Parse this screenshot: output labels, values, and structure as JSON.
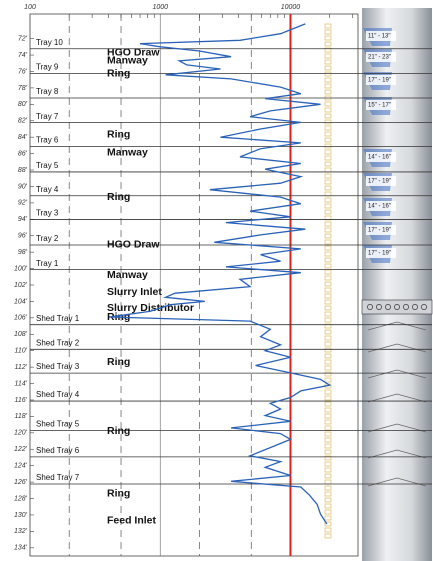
{
  "chart_data": {
    "type": "line",
    "x_log": true,
    "xlim": [
      100,
      33000
    ],
    "xticks": [
      100,
      1000,
      10000
    ],
    "x_minor_ticks": [
      200,
      500,
      2000,
      5000
    ],
    "ref_x": 10000,
    "ref_color": "#e0201a",
    "ylim": [
      69,
      135
    ],
    "yticks": [
      {
        "value": 72,
        "label": "72'"
      },
      {
        "value": 74,
        "label": "74'"
      },
      {
        "value": 76,
        "label": "76'"
      },
      {
        "value": 78,
        "label": "78'"
      },
      {
        "value": 80,
        "label": "80'"
      },
      {
        "value": 82,
        "label": "82'"
      },
      {
        "value": 84,
        "label": "84'"
      },
      {
        "value": 86,
        "label": "86'"
      },
      {
        "value": 88,
        "label": "88'"
      },
      {
        "value": 90,
        "label": "90'"
      },
      {
        "value": 92,
        "label": "92'"
      },
      {
        "value": 94,
        "label": "94'"
      },
      {
        "value": 96,
        "label": "96'"
      },
      {
        "value": 98,
        "label": "98'"
      },
      {
        "value": 100,
        "label": "100'"
      },
      {
        "value": 102,
        "label": "102'"
      },
      {
        "value": 104,
        "label": "104'"
      },
      {
        "value": 106,
        "label": "106'"
      },
      {
        "value": 108,
        "label": "108'"
      },
      {
        "value": 110,
        "label": "110'"
      },
      {
        "value": 112,
        "label": "112'"
      },
      {
        "value": 114,
        "label": "114'"
      },
      {
        "value": 116,
        "label": "116'"
      },
      {
        "value": 118,
        "label": "118'"
      },
      {
        "value": 120,
        "label": "120'"
      },
      {
        "value": 122,
        "label": "122'"
      },
      {
        "value": 124,
        "label": "124'"
      },
      {
        "value": 126,
        "label": "126'"
      },
      {
        "value": 128,
        "label": "128'"
      },
      {
        "value": 130,
        "label": "130'"
      },
      {
        "value": 132,
        "label": "132'"
      },
      {
        "value": 134,
        "label": "134'"
      }
    ],
    "series": [
      {
        "color": "#2a62b8",
        "depth": [
          70.2,
          71.4,
          72.2,
          72.6,
          73.0,
          73.5,
          74.2,
          74.7,
          75.2,
          75.7,
          76.4,
          76.9,
          77.9,
          78.7,
          79.3,
          80.0,
          80.8,
          81.5,
          82.2,
          83.0,
          84.0,
          84.7,
          85.4,
          86.4,
          87.2,
          87.9,
          88.8,
          89.6,
          90.4,
          91.3,
          92.1,
          93.0,
          93.7,
          94.4,
          95.2,
          95.9,
          96.8,
          97.6,
          98.3,
          99.1,
          99.8,
          100.5,
          101.3,
          102.2,
          103.0,
          103.5,
          104.0,
          104.4,
          105.2,
          105.9,
          106.4,
          107.4,
          108.3,
          109.3,
          110.0,
          110.8,
          111.8,
          112.7,
          113.5,
          114.2,
          114.9,
          115.7,
          116.4,
          117.1,
          117.9,
          118.6,
          119.4,
          120.1,
          120.8,
          121.8,
          122.8,
          123.5,
          124.2,
          125.2,
          125.9,
          126.6,
          127.6,
          128.7,
          129.9,
          131.1
        ],
        "values": [
          13000,
          8400,
          4100,
          700,
          1000,
          2000,
          3500,
          1400,
          1600,
          2900,
          1100,
          3500,
          8400,
          12000,
          6400,
          17000,
          7000,
          4900,
          12000,
          5900,
          2900,
          12000,
          5900,
          4100,
          12000,
          6400,
          12000,
          8400,
          2400,
          8400,
          12000,
          4900,
          10000,
          3200,
          13000,
          5900,
          2600,
          12000,
          5900,
          8400,
          3200,
          12000,
          4100,
          4900,
          1300,
          1100,
          2200,
          1200,
          840,
          410,
          4900,
          7000,
          5900,
          8400,
          6400,
          10000,
          5400,
          10000,
          17000,
          20000,
          12000,
          10000,
          7000,
          8400,
          6400,
          10000,
          3500,
          8400,
          10000,
          7000,
          4900,
          8400,
          6400,
          10000,
          3500,
          12000,
          14000,
          16000,
          17000,
          19000
        ]
      }
    ],
    "trays": [
      {
        "label": "Tray 10",
        "depth": 72.5
      },
      {
        "label": "Tray 9",
        "depth": 75.5
      },
      {
        "label": "Tray 8",
        "depth": 78.5
      },
      {
        "label": "Tray 7",
        "depth": 81.5
      },
      {
        "label": "Tray 6",
        "depth": 84.4
      },
      {
        "label": "Tray 5",
        "depth": 87.5
      },
      {
        "label": "Tray 4",
        "depth": 90.4
      },
      {
        "label": "Tray 3",
        "depth": 93.3
      },
      {
        "label": "Tray 2",
        "depth": 96.4
      },
      {
        "label": "Tray 1",
        "depth": 99.4
      },
      {
        "label": "Shed Tray 1",
        "depth": 106.1
      },
      {
        "label": "Shed Tray 2",
        "depth": 109.1
      },
      {
        "label": "Shed Tray 3",
        "depth": 112.0
      },
      {
        "label": "Shed Tray 4",
        "depth": 115.4
      },
      {
        "label": "Shed Tray 5",
        "depth": 119.0
      },
      {
        "label": "Shed Tray 6",
        "depth": 122.2
      },
      {
        "label": "Shed Tray 7",
        "depth": 125.5
      }
    ],
    "annotations": [
      {
        "text": "HGO Draw",
        "depth": 73.7
      },
      {
        "text": "Manway",
        "depth": 74.7
      },
      {
        "text": "Ring",
        "depth": 76.3
      },
      {
        "text": "Ring",
        "depth": 83.7
      },
      {
        "text": "Manway",
        "depth": 85.9
      },
      {
        "text": "Ring",
        "depth": 91.3
      },
      {
        "text": "HGO Draw",
        "depth": 97.1
      },
      {
        "text": "Manway",
        "depth": 100.8
      },
      {
        "text": "Slurry Inlet",
        "depth": 102.9
      },
      {
        "text": "Slurry Distributor",
        "depth": 104.8
      },
      {
        "text": "Ring",
        "depth": 105.9
      },
      {
        "text": "Ring",
        "depth": 111.4
      },
      {
        "text": "Ring",
        "depth": 119.8
      },
      {
        "text": "Ring",
        "depth": 127.4
      },
      {
        "text": "Feed Inlet",
        "depth": 130.7
      }
    ],
    "column_labels": [
      "11\" - 13\"",
      "21\" - 23\"",
      "17\" - 19\"",
      "15\" - 17\"",
      "14\" - 16\"",
      "17\" - 19\"",
      "14\" - 16\"",
      "17\" - 19\"",
      "17\" - 19\""
    ]
  }
}
